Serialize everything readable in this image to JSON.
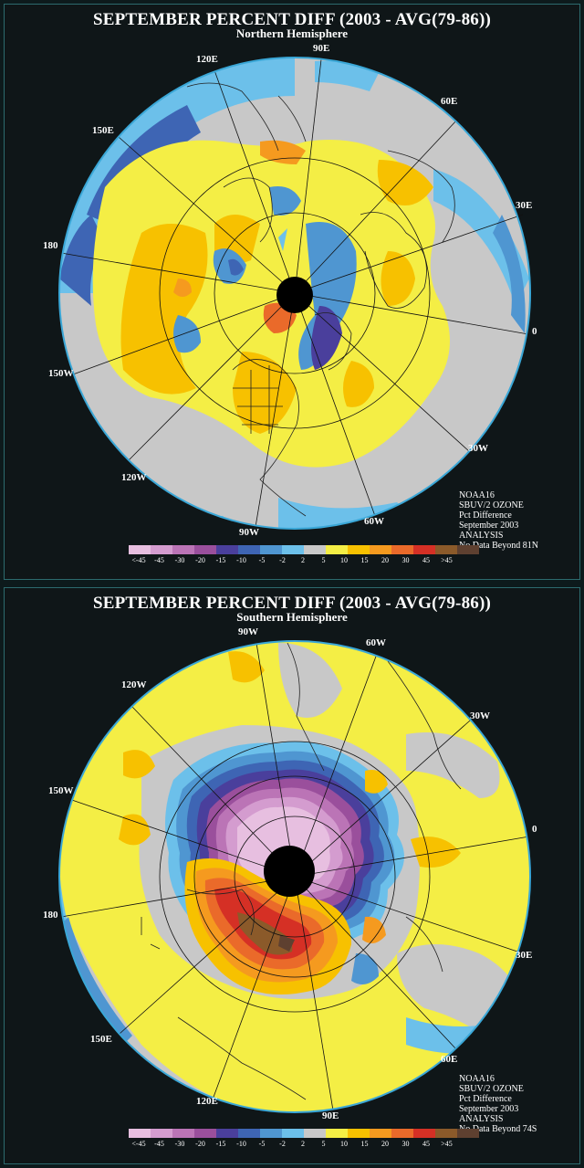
{
  "north": {
    "title": "SEPTEMBER PERCENT DIFF (2003 - AVG(79-86))",
    "subtitle": "Northern Hemisphere",
    "lon_labels": [
      "90E",
      "60E",
      "30E",
      "0",
      "30W",
      "60W",
      "90W",
      "120W",
      "150W",
      "180",
      "150E",
      "120E"
    ],
    "info": [
      "NOAA16",
      "SBUV/2 OZONE",
      "Pct Difference",
      "September 2003",
      "ANALYSIS",
      "No Data Beyond 81N"
    ]
  },
  "south": {
    "title": "SEPTEMBER PERCENT DIFF (2003 - AVG(79-86))",
    "subtitle": "Southern Hemisphere",
    "lon_labels": [
      "90W",
      "60W",
      "30W",
      "0",
      "30E",
      "60E",
      "90E",
      "120E",
      "150E",
      "180",
      "150W",
      "120W"
    ],
    "info": [
      "NOAA16",
      "SBUV/2 OZONE",
      "Pct Difference",
      "September 2003",
      "ANALYSIS",
      "No Data Beyond 74S"
    ]
  },
  "legend": {
    "labels": [
      "<-45",
      "-45",
      "-30",
      "-20",
      "-15",
      "-10",
      "-5",
      "-2",
      "2",
      "5",
      "10",
      "15",
      "20",
      "30",
      "45",
      ">45"
    ],
    "colors": [
      "#e7bfe0",
      "#d49ccf",
      "#bb74b6",
      "#9a4f9c",
      "#4a3f9c",
      "#3e65b4",
      "#4f96d1",
      "#6cc0ea",
      "#c8c8c8",
      "#f4ee45",
      "#f7c100",
      "#f59a1f",
      "#ea6a2a",
      "#d53025",
      "#8b5a2a",
      "#5e4030"
    ]
  }
}
